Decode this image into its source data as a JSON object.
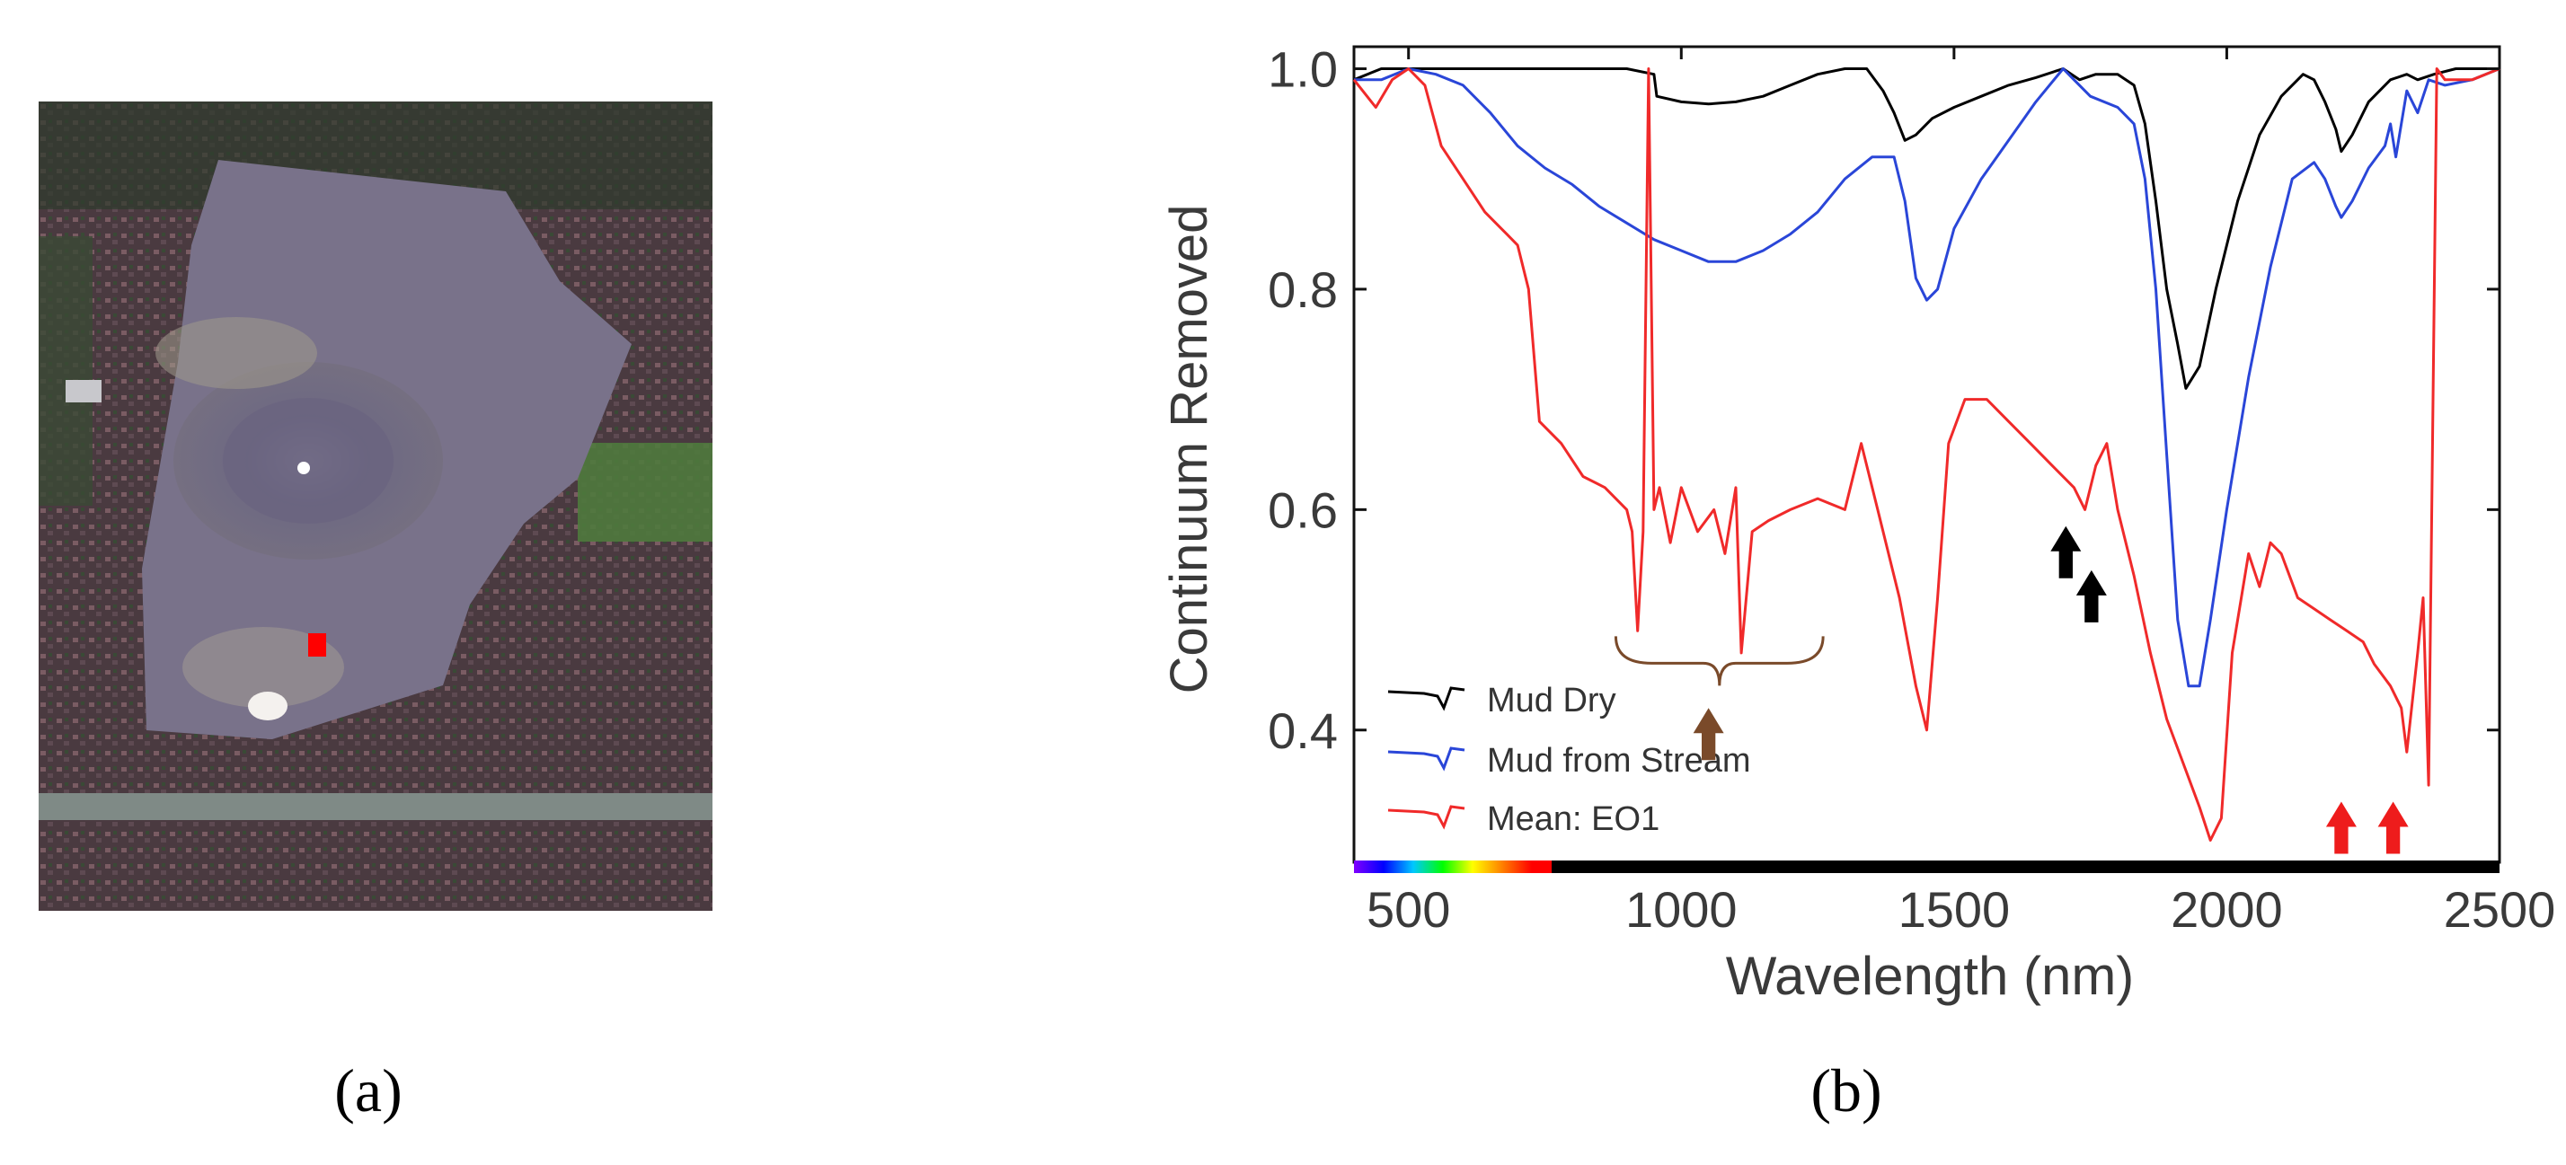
{
  "figure": {
    "panel_a_label": "(a)",
    "panel_b_label": "(b)"
  },
  "image_a": {
    "marker_color": "#ff0000"
  },
  "chart_data": {
    "type": "line",
    "title": "",
    "xlabel": "Wavelength (nm)",
    "ylabel": "Continuum Removed",
    "xlim": [
      400,
      2500
    ],
    "ylim": [
      0.28,
      1.02
    ],
    "xticks": [
      500,
      1000,
      1500,
      2000,
      2500
    ],
    "xtick_labels": [
      "500",
      "1000",
      "1500",
      "2000",
      "2500"
    ],
    "yticks": [
      0.4,
      0.6,
      0.8,
      1.0
    ],
    "ytick_labels": [
      "0.4",
      "0.6",
      "0.8",
      "1.0"
    ],
    "grid": false,
    "legend_position": "bottom-left",
    "series": [
      {
        "name": "Mud Dry",
        "color": "#000000",
        "x": [
          400,
          450,
          500,
          600,
          700,
          800,
          900,
          950,
          955,
          1000,
          1050,
          1100,
          1150,
          1200,
          1250,
          1300,
          1340,
          1370,
          1390,
          1410,
          1430,
          1460,
          1500,
          1550,
          1600,
          1650,
          1700,
          1730,
          1760,
          1800,
          1830,
          1850,
          1870,
          1890,
          1910,
          1925,
          1950,
          1980,
          2020,
          2060,
          2100,
          2140,
          2160,
          2180,
          2200,
          2210,
          2230,
          2260,
          2300,
          2330,
          2350,
          2380,
          2420,
          2460,
          2500
        ],
        "y": [
          0.99,
          1.0,
          1.0,
          1.0,
          1.0,
          1.0,
          1.0,
          0.995,
          0.975,
          0.97,
          0.968,
          0.97,
          0.975,
          0.985,
          0.995,
          1.0,
          1.0,
          0.98,
          0.96,
          0.935,
          0.94,
          0.955,
          0.965,
          0.975,
          0.985,
          0.992,
          1.0,
          0.99,
          0.995,
          0.995,
          0.985,
          0.95,
          0.88,
          0.8,
          0.75,
          0.71,
          0.73,
          0.8,
          0.88,
          0.94,
          0.975,
          0.995,
          0.99,
          0.97,
          0.945,
          0.925,
          0.94,
          0.97,
          0.99,
          0.995,
          0.99,
          0.995,
          1.0,
          1.0,
          1.0
        ]
      },
      {
        "name": "Mud from Stream",
        "color": "#2a46d8",
        "x": [
          400,
          450,
          500,
          550,
          600,
          650,
          700,
          750,
          800,
          850,
          900,
          950,
          1000,
          1050,
          1100,
          1150,
          1200,
          1250,
          1300,
          1350,
          1390,
          1410,
          1430,
          1450,
          1470,
          1500,
          1550,
          1600,
          1650,
          1700,
          1720,
          1750,
          1800,
          1830,
          1850,
          1870,
          1890,
          1910,
          1930,
          1950,
          1970,
          2000,
          2040,
          2080,
          2120,
          2160,
          2180,
          2200,
          2210,
          2230,
          2260,
          2290,
          2300,
          2310,
          2320,
          2330,
          2350,
          2370,
          2400,
          2450,
          2500
        ],
        "y": [
          0.99,
          0.99,
          1.0,
          0.995,
          0.985,
          0.96,
          0.93,
          0.91,
          0.895,
          0.875,
          0.86,
          0.845,
          0.835,
          0.825,
          0.825,
          0.835,
          0.85,
          0.87,
          0.9,
          0.92,
          0.92,
          0.88,
          0.81,
          0.79,
          0.8,
          0.855,
          0.9,
          0.935,
          0.97,
          1.0,
          0.99,
          0.975,
          0.965,
          0.95,
          0.9,
          0.8,
          0.65,
          0.5,
          0.44,
          0.44,
          0.5,
          0.6,
          0.72,
          0.82,
          0.9,
          0.915,
          0.9,
          0.875,
          0.865,
          0.88,
          0.91,
          0.93,
          0.95,
          0.92,
          0.95,
          0.98,
          0.96,
          0.99,
          0.985,
          0.99,
          1.0
        ]
      },
      {
        "name": "Mean: EO1",
        "color": "#f02a2a",
        "x": [
          400,
          440,
          470,
          500,
          530,
          560,
          600,
          640,
          680,
          700,
          720,
          740,
          780,
          820,
          860,
          900,
          910,
          920,
          930,
          940,
          950,
          960,
          980,
          1000,
          1030,
          1060,
          1080,
          1100,
          1110,
          1130,
          1160,
          1200,
          1250,
          1300,
          1330,
          1360,
          1400,
          1430,
          1450,
          1470,
          1490,
          1520,
          1560,
          1600,
          1640,
          1680,
          1720,
          1740,
          1760,
          1780,
          1800,
          1830,
          1860,
          1890,
          1920,
          1950,
          1970,
          1990,
          2010,
          2040,
          2060,
          2080,
          2100,
          2130,
          2160,
          2190,
          2220,
          2250,
          2270,
          2300,
          2320,
          2330,
          2350,
          2360,
          2370,
          2385,
          2400,
          2450,
          2500
        ],
        "y": [
          0.99,
          0.965,
          0.99,
          1.0,
          0.985,
          0.93,
          0.9,
          0.87,
          0.85,
          0.84,
          0.8,
          0.68,
          0.66,
          0.63,
          0.62,
          0.6,
          0.58,
          0.49,
          0.58,
          1.0,
          0.6,
          0.62,
          0.57,
          0.62,
          0.58,
          0.6,
          0.56,
          0.62,
          0.47,
          0.58,
          0.59,
          0.6,
          0.61,
          0.6,
          0.66,
          0.6,
          0.52,
          0.44,
          0.4,
          0.52,
          0.66,
          0.7,
          0.7,
          0.68,
          0.66,
          0.64,
          0.62,
          0.6,
          0.64,
          0.66,
          0.6,
          0.54,
          0.47,
          0.41,
          0.37,
          0.33,
          0.3,
          0.32,
          0.47,
          0.56,
          0.53,
          0.57,
          0.56,
          0.52,
          0.51,
          0.5,
          0.49,
          0.48,
          0.46,
          0.44,
          0.42,
          0.38,
          0.47,
          0.52,
          0.35,
          1.0,
          0.99,
          0.99,
          1.0
        ]
      }
    ],
    "legend": [
      "Mud Dry",
      "Mud from Stream",
      "Mean: EO1"
    ],
    "annotations": [
      {
        "type": "brace",
        "color": "#7a4a2a",
        "x_range": [
          880,
          1260
        ],
        "y": 0.49
      },
      {
        "type": "arrow",
        "color": "#7a4a2a",
        "x": 1050,
        "y": 0.42
      },
      {
        "type": "arrow",
        "color": "#000000",
        "x": 1705,
        "y": 0.585
      },
      {
        "type": "arrow",
        "color": "#000000",
        "x": 1752,
        "y": 0.545
      },
      {
        "type": "arrow",
        "color": "#ee1c1c",
        "x": 2210,
        "y": 0.335
      },
      {
        "type": "arrow",
        "color": "#ee1c1c",
        "x": 2305,
        "y": 0.335
      }
    ]
  }
}
